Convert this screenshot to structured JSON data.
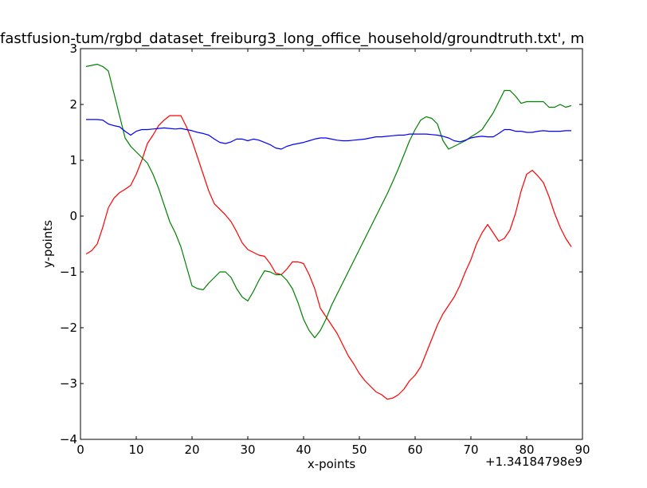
{
  "chart_data": {
    "type": "line",
    "title": "fastfusion-tum/rgbd_dataset_freiburg3_long_office_household/groundtruth.txt', m",
    "xlabel": "x-points",
    "ylabel": "y-points",
    "x_offset_label": "+1.34184798e9",
    "xlim": [
      0,
      90
    ],
    "ylim": [
      -4,
      3
    ],
    "grid": false,
    "x_ticks": [
      "0",
      "10",
      "20",
      "30",
      "40",
      "50",
      "60",
      "70",
      "80",
      "90"
    ],
    "y_ticks": [
      "−4",
      "−3",
      "−2",
      "−1",
      "0",
      "1",
      "2",
      "3"
    ],
    "series": [
      {
        "color": "#ff0000",
        "x": [
          1,
          2,
          3,
          4,
          5,
          6,
          7,
          8,
          9,
          10,
          11,
          12,
          13,
          14,
          15,
          16,
          17,
          18,
          19,
          20,
          21,
          22,
          23,
          24,
          25,
          26,
          27,
          28,
          29,
          30,
          31,
          32,
          33,
          34,
          35,
          36,
          37,
          38,
          39,
          40,
          41,
          42,
          43,
          44,
          45,
          46,
          47,
          48,
          49,
          50,
          51,
          52,
          53,
          54,
          55,
          56,
          57,
          58,
          59,
          60,
          61,
          62,
          63,
          64,
          65,
          66,
          67,
          68,
          69,
          70,
          71,
          72,
          73,
          74,
          75,
          76,
          77,
          78,
          79,
          80,
          81,
          82,
          83,
          84,
          85,
          86,
          87,
          88
        ],
        "y": [
          -0.68,
          -0.62,
          -0.5,
          -0.2,
          0.15,
          0.32,
          0.42,
          0.48,
          0.55,
          0.75,
          1.0,
          1.3,
          1.45,
          1.62,
          1.72,
          1.8,
          1.8,
          1.8,
          1.6,
          1.35,
          1.05,
          0.75,
          0.45,
          0.22,
          0.12,
          0.02,
          -0.1,
          -0.28,
          -0.48,
          -0.6,
          -0.65,
          -0.7,
          -0.72,
          -0.85,
          -1.02,
          -1.05,
          -0.95,
          -0.82,
          -0.82,
          -0.85,
          -1.05,
          -1.3,
          -1.65,
          -1.8,
          -1.95,
          -2.1,
          -2.3,
          -2.5,
          -2.65,
          -2.82,
          -2.95,
          -3.05,
          -3.15,
          -3.2,
          -3.28,
          -3.26,
          -3.2,
          -3.1,
          -2.95,
          -2.85,
          -2.7,
          -2.45,
          -2.2,
          -1.95,
          -1.75,
          -1.6,
          -1.45,
          -1.25,
          -1.0,
          -0.78,
          -0.5,
          -0.3,
          -0.15,
          -0.3,
          -0.45,
          -0.4,
          -0.25,
          0.05,
          0.45,
          0.75,
          0.82,
          0.72,
          0.6,
          0.35,
          0.05,
          -0.2,
          -0.4,
          -0.55
        ]
      },
      {
        "color": "#008000",
        "x": [
          1,
          2,
          3,
          4,
          5,
          6,
          7,
          8,
          9,
          10,
          11,
          12,
          13,
          14,
          15,
          16,
          17,
          18,
          19,
          20,
          21,
          22,
          23,
          24,
          25,
          26,
          27,
          28,
          29,
          30,
          31,
          32,
          33,
          34,
          35,
          36,
          37,
          38,
          39,
          40,
          41,
          42,
          43,
          44,
          45,
          46,
          47,
          48,
          49,
          50,
          51,
          52,
          53,
          54,
          55,
          56,
          57,
          58,
          59,
          60,
          61,
          62,
          63,
          64,
          65,
          66,
          67,
          68,
          69,
          70,
          71,
          72,
          73,
          74,
          75,
          76,
          77,
          78,
          79,
          80,
          81,
          82,
          83,
          84,
          85,
          86,
          87,
          88
        ],
        "y": [
          2.68,
          2.7,
          2.72,
          2.68,
          2.6,
          2.2,
          1.8,
          1.4,
          1.25,
          1.15,
          1.05,
          0.95,
          0.75,
          0.5,
          0.2,
          -0.1,
          -0.3,
          -0.55,
          -0.9,
          -1.25,
          -1.3,
          -1.32,
          -1.2,
          -1.1,
          -1.0,
          -1.0,
          -1.1,
          -1.3,
          -1.45,
          -1.52,
          -1.35,
          -1.15,
          -0.98,
          -1.0,
          -1.05,
          -1.05,
          -1.15,
          -1.3,
          -1.55,
          -1.85,
          -2.05,
          -2.18,
          -2.05,
          -1.85,
          -1.6,
          -1.4,
          -1.2,
          -1.0,
          -0.8,
          -0.6,
          -0.4,
          -0.2,
          0.0,
          0.2,
          0.4,
          0.62,
          0.85,
          1.1,
          1.35,
          1.55,
          1.72,
          1.78,
          1.75,
          1.65,
          1.35,
          1.2,
          1.25,
          1.3,
          1.35,
          1.42,
          1.48,
          1.55,
          1.7,
          1.85,
          2.05,
          2.25,
          2.25,
          2.15,
          2.02,
          2.05,
          2.05,
          2.05,
          2.05,
          1.95,
          1.95,
          2.0,
          1.95,
          1.98
        ]
      },
      {
        "color": "#0000ff",
        "x": [
          1,
          2,
          3,
          4,
          5,
          6,
          7,
          8,
          9,
          10,
          11,
          12,
          13,
          14,
          15,
          16,
          17,
          18,
          19,
          20,
          21,
          22,
          23,
          24,
          25,
          26,
          27,
          28,
          29,
          30,
          31,
          32,
          33,
          34,
          35,
          36,
          37,
          38,
          39,
          40,
          41,
          42,
          43,
          44,
          45,
          46,
          47,
          48,
          49,
          50,
          51,
          52,
          53,
          54,
          55,
          56,
          57,
          58,
          59,
          60,
          61,
          62,
          63,
          64,
          65,
          66,
          67,
          68,
          69,
          70,
          71,
          72,
          73,
          74,
          75,
          76,
          77,
          78,
          79,
          80,
          81,
          82,
          83,
          84,
          85,
          86,
          87,
          88
        ],
        "y": [
          1.73,
          1.73,
          1.73,
          1.72,
          1.65,
          1.62,
          1.6,
          1.52,
          1.45,
          1.52,
          1.55,
          1.55,
          1.56,
          1.57,
          1.58,
          1.57,
          1.56,
          1.57,
          1.55,
          1.53,
          1.5,
          1.48,
          1.45,
          1.38,
          1.32,
          1.3,
          1.33,
          1.38,
          1.38,
          1.35,
          1.38,
          1.36,
          1.32,
          1.28,
          1.22,
          1.2,
          1.25,
          1.28,
          1.3,
          1.32,
          1.35,
          1.38,
          1.4,
          1.4,
          1.38,
          1.36,
          1.35,
          1.35,
          1.36,
          1.37,
          1.38,
          1.4,
          1.42,
          1.42,
          1.43,
          1.44,
          1.45,
          1.45,
          1.47,
          1.47,
          1.47,
          1.47,
          1.46,
          1.45,
          1.43,
          1.4,
          1.35,
          1.33,
          1.36,
          1.4,
          1.42,
          1.43,
          1.42,
          1.42,
          1.48,
          1.55,
          1.55,
          1.52,
          1.52,
          1.5,
          1.5,
          1.52,
          1.53,
          1.52,
          1.52,
          1.52,
          1.53,
          1.53
        ]
      }
    ]
  }
}
